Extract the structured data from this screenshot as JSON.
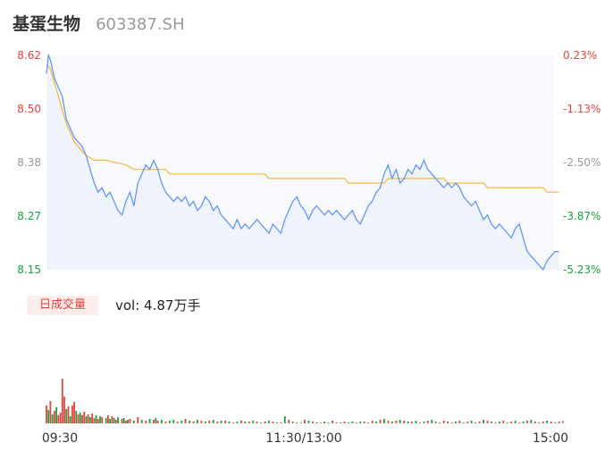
{
  "stock": {
    "name": "基蛋生物",
    "code": "603387.SH"
  },
  "volume": {
    "tab_label": "日成交量",
    "label": "vol: 4.87万手"
  },
  "colors": {
    "up": "#e8413e",
    "down": "#1aa23a",
    "flat": "#999999",
    "price_line": "#5b8ff9",
    "avg_line": "#f5b73b"
  },
  "chart_data": {
    "type": "line",
    "x_ticks": [
      "09:30",
      "11:30/13:00",
      "15:00"
    ],
    "price_axis": {
      "ticks": [
        "8.62",
        "8.50",
        "8.38",
        "8.27",
        "8.15"
      ],
      "min": 8.15,
      "max": 8.62
    },
    "pct_axis": {
      "ticks": [
        "0.23%",
        "-1.13%",
        "-2.50%",
        "-3.87%",
        "-5.23%"
      ]
    },
    "price_series": [
      [
        0,
        8.58
      ],
      [
        1,
        8.62
      ],
      [
        2,
        8.61
      ],
      [
        4,
        8.57
      ],
      [
        6,
        8.55
      ],
      [
        8,
        8.53
      ],
      [
        10,
        8.48
      ],
      [
        12,
        8.46
      ],
      [
        14,
        8.44
      ],
      [
        16,
        8.43
      ],
      [
        18,
        8.42
      ],
      [
        20,
        8.4
      ],
      [
        22,
        8.37
      ],
      [
        24,
        8.34
      ],
      [
        26,
        8.32
      ],
      [
        28,
        8.33
      ],
      [
        30,
        8.31
      ],
      [
        32,
        8.32
      ],
      [
        34,
        8.3
      ],
      [
        36,
        8.28
      ],
      [
        38,
        8.27
      ],
      [
        40,
        8.3
      ],
      [
        42,
        8.32
      ],
      [
        44,
        8.29
      ],
      [
        46,
        8.34
      ],
      [
        48,
        8.36
      ],
      [
        50,
        8.38
      ],
      [
        52,
        8.37
      ],
      [
        54,
        8.39
      ],
      [
        56,
        8.37
      ],
      [
        58,
        8.34
      ],
      [
        60,
        8.32
      ],
      [
        62,
        8.31
      ],
      [
        64,
        8.3
      ],
      [
        66,
        8.31
      ],
      [
        68,
        8.3
      ],
      [
        70,
        8.31
      ],
      [
        72,
        8.29
      ],
      [
        74,
        8.3
      ],
      [
        76,
        8.28
      ],
      [
        78,
        8.29
      ],
      [
        80,
        8.31
      ],
      [
        82,
        8.3
      ],
      [
        84,
        8.28
      ],
      [
        86,
        8.29
      ],
      [
        88,
        8.27
      ],
      [
        90,
        8.26
      ],
      [
        92,
        8.25
      ],
      [
        94,
        8.24
      ],
      [
        96,
        8.26
      ],
      [
        98,
        8.24
      ],
      [
        100,
        8.25
      ],
      [
        102,
        8.24
      ],
      [
        104,
        8.25
      ],
      [
        106,
        8.26
      ],
      [
        108,
        8.25
      ],
      [
        110,
        8.24
      ],
      [
        112,
        8.23
      ],
      [
        114,
        8.25
      ],
      [
        116,
        8.24
      ],
      [
        118,
        8.23
      ],
      [
        120,
        8.26
      ],
      [
        122,
        8.28
      ],
      [
        124,
        8.3
      ],
      [
        126,
        8.31
      ],
      [
        128,
        8.29
      ],
      [
        130,
        8.28
      ],
      [
        132,
        8.26
      ],
      [
        134,
        8.28
      ],
      [
        136,
        8.29
      ],
      [
        138,
        8.28
      ],
      [
        140,
        8.27
      ],
      [
        142,
        8.28
      ],
      [
        144,
        8.27
      ],
      [
        146,
        8.28
      ],
      [
        148,
        8.27
      ],
      [
        150,
        8.26
      ],
      [
        152,
        8.27
      ],
      [
        154,
        8.28
      ],
      [
        156,
        8.26
      ],
      [
        158,
        8.25
      ],
      [
        160,
        8.27
      ],
      [
        162,
        8.29
      ],
      [
        164,
        8.3
      ],
      [
        166,
        8.32
      ],
      [
        168,
        8.33
      ],
      [
        170,
        8.36
      ],
      [
        172,
        8.38
      ],
      [
        174,
        8.35
      ],
      [
        176,
        8.37
      ],
      [
        178,
        8.34
      ],
      [
        180,
        8.35
      ],
      [
        182,
        8.37
      ],
      [
        184,
        8.36
      ],
      [
        186,
        8.38
      ],
      [
        188,
        8.37
      ],
      [
        190,
        8.39
      ],
      [
        192,
        8.37
      ],
      [
        194,
        8.36
      ],
      [
        196,
        8.35
      ],
      [
        198,
        8.34
      ],
      [
        200,
        8.33
      ],
      [
        202,
        8.34
      ],
      [
        204,
        8.33
      ],
      [
        206,
        8.34
      ],
      [
        208,
        8.33
      ],
      [
        210,
        8.31
      ],
      [
        212,
        8.3
      ],
      [
        214,
        8.29
      ],
      [
        216,
        8.3
      ],
      [
        218,
        8.28
      ],
      [
        220,
        8.26
      ],
      [
        222,
        8.27
      ],
      [
        224,
        8.25
      ],
      [
        226,
        8.24
      ],
      [
        228,
        8.25
      ],
      [
        230,
        8.24
      ],
      [
        232,
        8.23
      ],
      [
        234,
        8.22
      ],
      [
        236,
        8.24
      ],
      [
        238,
        8.25
      ],
      [
        240,
        8.22
      ],
      [
        242,
        8.19
      ],
      [
        244,
        8.18
      ],
      [
        246,
        8.17
      ],
      [
        248,
        8.16
      ],
      [
        250,
        8.15
      ],
      [
        252,
        8.17
      ],
      [
        254,
        8.18
      ],
      [
        256,
        8.19
      ],
      [
        258,
        8.19
      ]
    ],
    "avg_series": [
      [
        0,
        8.6
      ],
      [
        2,
        8.59
      ],
      [
        4,
        8.56
      ],
      [
        6,
        8.53
      ],
      [
        8,
        8.5
      ],
      [
        10,
        8.47
      ],
      [
        12,
        8.45
      ],
      [
        14,
        8.43
      ],
      [
        16,
        8.42
      ],
      [
        18,
        8.41
      ],
      [
        20,
        8.4
      ],
      [
        24,
        8.39
      ],
      [
        30,
        8.39
      ],
      [
        40,
        8.38
      ],
      [
        44,
        8.37
      ],
      [
        60,
        8.37
      ],
      [
        62,
        8.36
      ],
      [
        110,
        8.36
      ],
      [
        112,
        8.35
      ],
      [
        130,
        8.35
      ],
      [
        140,
        8.35
      ],
      [
        150,
        8.35
      ],
      [
        152,
        8.34
      ],
      [
        170,
        8.34
      ],
      [
        172,
        8.35
      ],
      [
        200,
        8.35
      ],
      [
        202,
        8.34
      ],
      [
        220,
        8.34
      ],
      [
        222,
        8.33
      ],
      [
        240,
        8.33
      ],
      [
        250,
        8.33
      ],
      [
        252,
        8.32
      ],
      [
        258,
        8.32
      ]
    ],
    "volume_series": [
      [
        0,
        20,
        "up"
      ],
      [
        1,
        15,
        "down"
      ],
      [
        2,
        25,
        "up"
      ],
      [
        3,
        10,
        "down"
      ],
      [
        4,
        14,
        "up"
      ],
      [
        5,
        18,
        "down"
      ],
      [
        6,
        9,
        "up"
      ],
      [
        7,
        12,
        "up"
      ],
      [
        8,
        50,
        "up"
      ],
      [
        9,
        30,
        "up"
      ],
      [
        10,
        16,
        "down"
      ],
      [
        11,
        19,
        "up"
      ],
      [
        12,
        8,
        "down"
      ],
      [
        13,
        20,
        "up"
      ],
      [
        14,
        24,
        "up"
      ],
      [
        15,
        14,
        "down"
      ],
      [
        16,
        10,
        "up"
      ],
      [
        17,
        12,
        "down"
      ],
      [
        18,
        9,
        "up"
      ],
      [
        19,
        13,
        "up"
      ],
      [
        20,
        8,
        "down"
      ],
      [
        21,
        10,
        "up"
      ],
      [
        22,
        7,
        "down"
      ],
      [
        23,
        11,
        "up"
      ],
      [
        24,
        6,
        "up"
      ],
      [
        25,
        9,
        "down"
      ],
      [
        26,
        5,
        "up"
      ],
      [
        27,
        8,
        "down"
      ],
      [
        28,
        7,
        "up"
      ],
      [
        30,
        6,
        "down"
      ],
      [
        31,
        9,
        "up"
      ],
      [
        32,
        5,
        "down"
      ],
      [
        33,
        8,
        "up"
      ],
      [
        34,
        6,
        "down"
      ],
      [
        35,
        4,
        "up"
      ],
      [
        36,
        7,
        "down"
      ],
      [
        38,
        5,
        "up"
      ],
      [
        39,
        6,
        "down"
      ],
      [
        40,
        3,
        "up"
      ],
      [
        41,
        4,
        "down"
      ],
      [
        42,
        5,
        "up"
      ],
      [
        44,
        3,
        "down"
      ],
      [
        46,
        7,
        "up"
      ],
      [
        48,
        4,
        "down"
      ],
      [
        50,
        3,
        "up"
      ],
      [
        52,
        5,
        "down"
      ],
      [
        54,
        4,
        "up"
      ],
      [
        55,
        6,
        "down"
      ],
      [
        56,
        3,
        "up"
      ],
      [
        58,
        4,
        "down"
      ],
      [
        60,
        2,
        "up"
      ],
      [
        62,
        3,
        "down"
      ],
      [
        64,
        4,
        "down"
      ],
      [
        66,
        2,
        "up"
      ],
      [
        68,
        3,
        "down"
      ],
      [
        70,
        5,
        "up"
      ],
      [
        72,
        3,
        "down"
      ],
      [
        74,
        2,
        "up"
      ],
      [
        76,
        4,
        "down"
      ],
      [
        78,
        3,
        "up"
      ],
      [
        80,
        2,
        "down"
      ],
      [
        82,
        3,
        "up"
      ],
      [
        84,
        4,
        "down"
      ],
      [
        86,
        2,
        "up"
      ],
      [
        88,
        3,
        "down"
      ],
      [
        90,
        3,
        "up"
      ],
      [
        92,
        2,
        "down"
      ],
      [
        94,
        1,
        "up"
      ],
      [
        96,
        2,
        "down"
      ],
      [
        98,
        3,
        "up"
      ],
      [
        100,
        2,
        "down"
      ],
      [
        102,
        2,
        "up"
      ],
      [
        104,
        3,
        "down"
      ],
      [
        106,
        2,
        "up"
      ],
      [
        108,
        1,
        "down"
      ],
      [
        110,
        2,
        "up"
      ],
      [
        112,
        3,
        "down"
      ],
      [
        114,
        2,
        "up"
      ],
      [
        116,
        1,
        "down"
      ],
      [
        118,
        1,
        "up"
      ],
      [
        120,
        8,
        "down"
      ],
      [
        122,
        4,
        "up"
      ],
      [
        124,
        2,
        "down"
      ],
      [
        126,
        1,
        "up"
      ],
      [
        128,
        1,
        "down"
      ],
      [
        130,
        4,
        "up"
      ],
      [
        132,
        3,
        "down"
      ],
      [
        134,
        2,
        "up"
      ],
      [
        136,
        1,
        "down"
      ],
      [
        138,
        1,
        "up"
      ],
      [
        140,
        2,
        "down"
      ],
      [
        142,
        1,
        "down"
      ],
      [
        144,
        3,
        "up"
      ],
      [
        146,
        1,
        "up"
      ],
      [
        148,
        1,
        "down"
      ],
      [
        150,
        2,
        "up"
      ],
      [
        152,
        1,
        "down"
      ],
      [
        154,
        2,
        "down"
      ],
      [
        156,
        1,
        "up"
      ],
      [
        158,
        2,
        "down"
      ],
      [
        160,
        2,
        "up"
      ],
      [
        162,
        1,
        "down"
      ],
      [
        164,
        3,
        "up"
      ],
      [
        166,
        2,
        "down"
      ],
      [
        168,
        4,
        "up"
      ],
      [
        170,
        5,
        "down"
      ],
      [
        172,
        3,
        "up"
      ],
      [
        174,
        2,
        "down"
      ],
      [
        176,
        3,
        "up"
      ],
      [
        178,
        4,
        "down"
      ],
      [
        180,
        3,
        "up"
      ],
      [
        182,
        2,
        "down"
      ],
      [
        184,
        2,
        "up"
      ],
      [
        186,
        3,
        "down"
      ],
      [
        188,
        1,
        "up"
      ],
      [
        190,
        2,
        "down"
      ],
      [
        192,
        3,
        "up"
      ],
      [
        194,
        4,
        "down"
      ],
      [
        196,
        2,
        "up"
      ],
      [
        198,
        1,
        "down"
      ],
      [
        200,
        3,
        "up"
      ],
      [
        202,
        2,
        "down"
      ],
      [
        204,
        1,
        "up"
      ],
      [
        206,
        2,
        "down"
      ],
      [
        208,
        3,
        "up"
      ],
      [
        210,
        1,
        "down"
      ],
      [
        212,
        2,
        "up"
      ],
      [
        214,
        3,
        "down"
      ],
      [
        216,
        1,
        "down"
      ],
      [
        218,
        2,
        "up"
      ],
      [
        220,
        4,
        "down"
      ],
      [
        222,
        3,
        "up"
      ],
      [
        224,
        2,
        "down"
      ],
      [
        226,
        1,
        "up"
      ],
      [
        228,
        2,
        "down"
      ],
      [
        230,
        3,
        "up"
      ],
      [
        232,
        1,
        "down"
      ],
      [
        234,
        2,
        "up"
      ],
      [
        236,
        3,
        "down"
      ],
      [
        238,
        1,
        "up"
      ],
      [
        240,
        2,
        "down"
      ],
      [
        242,
        3,
        "up"
      ],
      [
        244,
        4,
        "down"
      ],
      [
        246,
        2,
        "up"
      ],
      [
        248,
        1,
        "down"
      ],
      [
        250,
        2,
        "up"
      ],
      [
        252,
        3,
        "down"
      ],
      [
        254,
        2,
        "up"
      ],
      [
        256,
        1,
        "down"
      ],
      [
        258,
        2,
        "up"
      ],
      [
        260,
        3,
        "flat"
      ]
    ]
  }
}
